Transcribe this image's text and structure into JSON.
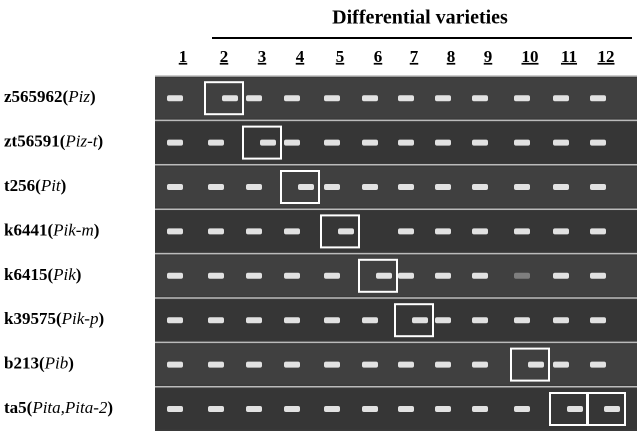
{
  "header": {
    "title": "Differential varieties",
    "lanes": [
      "1",
      "2",
      "3",
      "4",
      "5",
      "6",
      "7",
      "8",
      "9",
      "10",
      "11",
      "12"
    ]
  },
  "rows": [
    {
      "label": [
        "z565962(",
        "Piz",
        ")"
      ]
    },
    {
      "label": [
        "zt56591(",
        "Piz-t",
        ")"
      ]
    },
    {
      "label": [
        "t256(",
        "Pit",
        ")"
      ]
    },
    {
      "label": [
        "k6441(",
        "Pik-m",
        ")"
      ]
    },
    {
      "label": [
        "k6415(",
        "Pik",
        ")"
      ]
    },
    {
      "label": [
        "k39575(",
        "Pik-p",
        ")"
      ]
    },
    {
      "label": [
        "b213(",
        "Pib",
        ")"
      ]
    },
    {
      "label": [
        "ta5(",
        "Pita,Pita-2",
        ")"
      ]
    }
  ]
}
